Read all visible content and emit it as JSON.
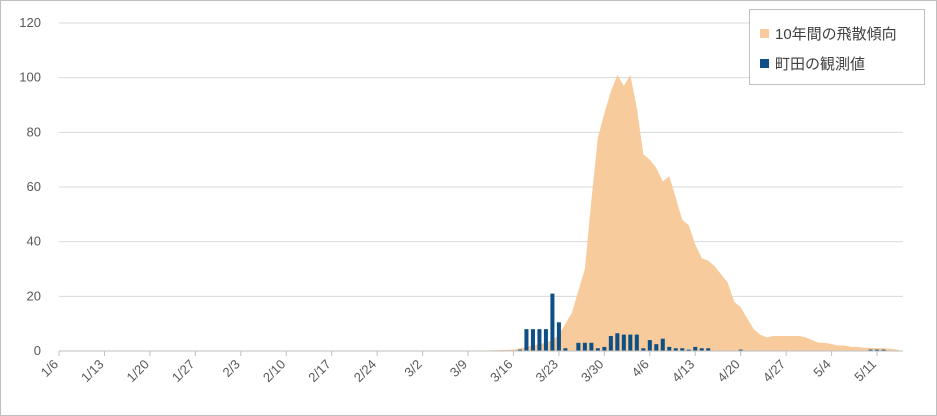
{
  "chart_data": {
    "type": "area",
    "title": "",
    "xlabel": "",
    "ylabel": "",
    "ylim": [
      0,
      120
    ],
    "yticks": [
      "0",
      "20",
      "40",
      "60",
      "80",
      "100",
      "120"
    ],
    "grid": "horizontal",
    "legend_position": "top-right",
    "x_start": "1/6",
    "x_end": "5/15",
    "xtick_labels": [
      "1/6",
      "1/13",
      "1/20",
      "1/27",
      "2/3",
      "2/10",
      "2/17",
      "2/24",
      "3/2",
      "3/9",
      "3/16",
      "3/23",
      "3/30",
      "4/6",
      "4/13",
      "4/20",
      "4/27",
      "5/4",
      "5/11"
    ],
    "series": [
      {
        "name": "10年間の飛散傾向",
        "type": "area",
        "color": "#f8cb9c",
        "points": [
          [
            "3/9",
            0
          ],
          [
            "3/16",
            0.5
          ],
          [
            "3/17",
            1
          ],
          [
            "3/18",
            1.5
          ],
          [
            "3/19",
            2
          ],
          [
            "3/20",
            2.5
          ],
          [
            "3/21",
            3
          ],
          [
            "3/22",
            4
          ],
          [
            "3/23",
            6
          ],
          [
            "3/24",
            10
          ],
          [
            "3/25",
            14
          ],
          [
            "3/26",
            22
          ],
          [
            "3/27",
            30
          ],
          [
            "3/28",
            55
          ],
          [
            "3/29",
            78
          ],
          [
            "3/30",
            87
          ],
          [
            "3/31",
            95
          ],
          [
            "4/1",
            101
          ],
          [
            "4/2",
            97
          ],
          [
            "4/3",
            101
          ],
          [
            "4/4",
            89
          ],
          [
            "4/5",
            72
          ],
          [
            "4/6",
            70
          ],
          [
            "4/7",
            67
          ],
          [
            "4/8",
            62
          ],
          [
            "4/9",
            64
          ],
          [
            "4/10",
            56
          ],
          [
            "4/11",
            48
          ],
          [
            "4/12",
            46
          ],
          [
            "4/13",
            39
          ],
          [
            "4/14",
            34
          ],
          [
            "4/15",
            33
          ],
          [
            "4/16",
            31
          ],
          [
            "4/17",
            28
          ],
          [
            "4/18",
            25
          ],
          [
            "4/19",
            18
          ],
          [
            "4/20",
            16
          ],
          [
            "4/21",
            12
          ],
          [
            "4/22",
            8
          ],
          [
            "4/23",
            6
          ],
          [
            "4/24",
            5
          ],
          [
            "4/25",
            5.5
          ],
          [
            "4/26",
            5.5
          ],
          [
            "4/27",
            5.5
          ],
          [
            "4/28",
            5.5
          ],
          [
            "4/29",
            5.5
          ],
          [
            "4/30",
            5
          ],
          [
            "5/1",
            4
          ],
          [
            "5/2",
            3
          ],
          [
            "5/3",
            3
          ],
          [
            "5/4",
            2.5
          ],
          [
            "5/5",
            2
          ],
          [
            "5/6",
            2
          ],
          [
            "5/7",
            1.5
          ],
          [
            "5/8",
            1.5
          ],
          [
            "5/9",
            1.2
          ],
          [
            "5/10",
            1.2
          ],
          [
            "5/11",
            1
          ],
          [
            "5/12",
            1
          ],
          [
            "5/13",
            0.8
          ],
          [
            "5/14",
            0.5
          ],
          [
            "5/15",
            0
          ]
        ]
      },
      {
        "name": "町田の観測値",
        "type": "bar",
        "color": "#0e5085",
        "points": [
          [
            "3/17",
            0.5
          ],
          [
            "3/18",
            8
          ],
          [
            "3/19",
            8
          ],
          [
            "3/20",
            8
          ],
          [
            "3/21",
            8
          ],
          [
            "3/22",
            21
          ],
          [
            "3/23",
            10.5
          ],
          [
            "3/24",
            1
          ],
          [
            "3/26",
            3
          ],
          [
            "3/27",
            3
          ],
          [
            "3/28",
            3
          ],
          [
            "3/29",
            1
          ],
          [
            "3/30",
            1.5
          ],
          [
            "3/31",
            5.5
          ],
          [
            "4/1",
            6.5
          ],
          [
            "4/2",
            6
          ],
          [
            "4/3",
            6
          ],
          [
            "4/4",
            6
          ],
          [
            "4/5",
            1
          ],
          [
            "4/6",
            4
          ],
          [
            "4/7",
            2.5
          ],
          [
            "4/8",
            4.5
          ],
          [
            "4/9",
            1.5
          ],
          [
            "4/10",
            1
          ],
          [
            "4/11",
            1
          ],
          [
            "4/12",
            0.5
          ],
          [
            "4/13",
            1.5
          ],
          [
            "4/14",
            1
          ],
          [
            "4/15",
            1
          ],
          [
            "4/20",
            0.5
          ],
          [
            "5/10",
            0.5
          ],
          [
            "5/11",
            0.5
          ],
          [
            "5/12",
            0.5
          ]
        ]
      }
    ]
  }
}
